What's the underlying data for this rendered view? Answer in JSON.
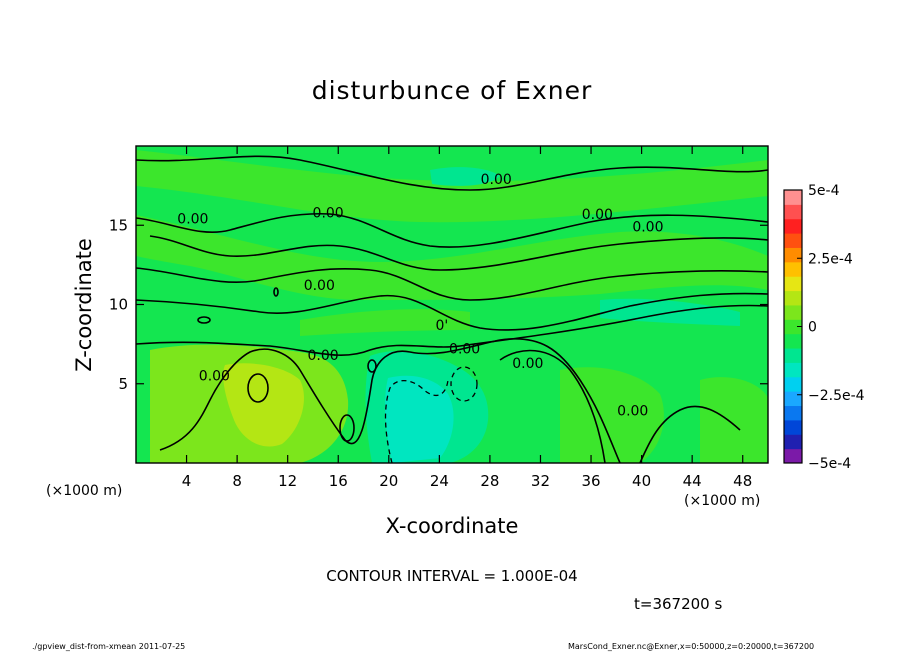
{
  "chart_data": {
    "type": "heatmap",
    "title": "disturbunce of Exner",
    "xlabel": "X-coordinate",
    "ylabel": "Z-coordinate",
    "x_unit": "(×1000 m)",
    "xlim": [
      0,
      50
    ],
    "ylim": [
      0,
      20
    ],
    "x_ticks": [
      4,
      8,
      12,
      16,
      20,
      24,
      28,
      32,
      36,
      40,
      44,
      48
    ],
    "y_ticks": [
      5,
      10,
      15
    ],
    "colorbar": {
      "ticks": [
        "5e-4",
        "2.5e-4",
        "0",
        "−2.5e-4",
        "−5e-4"
      ],
      "values": [
        0.0005,
        0.00025,
        0,
        -0.00025,
        -0.0005
      ],
      "range": [
        -0.0005,
        0.0005
      ],
      "colors": [
        "#7b1aa8",
        "#2020b0",
        "#0046d8",
        "#0a78f0",
        "#1aa8ff",
        "#00d0f0",
        "#00e6c0",
        "#00e690",
        "#14e650",
        "#3ce62c",
        "#7ce61c",
        "#b4e614",
        "#e6e614",
        "#ffc000",
        "#ff8c00",
        "#ff5010",
        "#ff2020",
        "#ff5050",
        "#ff9090"
      ]
    },
    "contour_labels": [
      {
        "text": "0.00",
        "x": 4.5,
        "z": 15.1
      },
      {
        "text": "0.00",
        "x": 15.2,
        "z": 15.5
      },
      {
        "text": "0.00",
        "x": 28.5,
        "z": 17.6
      },
      {
        "text": "0.00",
        "x": 36.5,
        "z": 15.4
      },
      {
        "text": "0.00",
        "x": 40.5,
        "z": 14.6
      },
      {
        "text": "0.00",
        "x": 14.5,
        "z": 10.9
      },
      {
        "text": "0'",
        "x": 24.2,
        "z": 8.4
      },
      {
        "text": "0.00",
        "x": 14.8,
        "z": 6.5
      },
      {
        "text": "0.00",
        "x": 26.0,
        "z": 6.9
      },
      {
        "text": "0.00",
        "x": 31.0,
        "z": 6.0
      },
      {
        "text": "0.00",
        "x": 6.2,
        "z": 5.2
      },
      {
        "text": "0.00",
        "x": 39.3,
        "z": 3.0
      }
    ]
  },
  "contour_interval": "CONTOUR INTERVAL = 1.000E-04",
  "time_label": "t=367200 s",
  "footer_left": "./gpview_dist-from-xmean  2011-07-25",
  "footer_right": "MarsCond_Exner.nc@Exner,x=0:50000,z=0:20000,t=367200"
}
